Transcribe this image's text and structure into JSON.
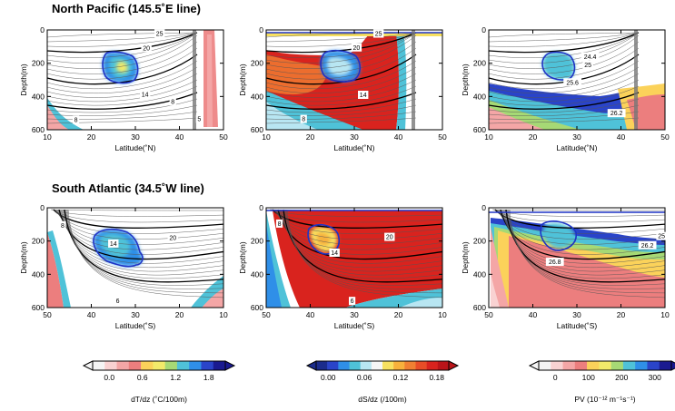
{
  "chart_data": {
    "type": "heatmap",
    "sections": [
      {
        "title": "North Pacific (145.5˚E line)",
        "region": "north-pacific"
      },
      {
        "title": "South Atlantic (34.5˚W line)",
        "region": "south-atlantic"
      }
    ],
    "depth_axis": {
      "label": "Depth(m)",
      "range": [
        0,
        600
      ],
      "ticks": [
        "0",
        "200",
        "400",
        "600"
      ]
    },
    "lat_axis_north": {
      "label": "Latitude(˚N)",
      "range": [
        10,
        50
      ],
      "ticks": [
        "10",
        "20",
        "30",
        "40",
        "50"
      ]
    },
    "lat_axis_south": {
      "label": "Latitude(˚S)",
      "range": [
        50,
        10
      ],
      "ticks": [
        "50",
        "40",
        "30",
        "20",
        "10"
      ]
    },
    "panels": [
      {
        "id": "np-dtdz",
        "region": "north",
        "variable": "dT/dz",
        "contour_labels": [
          {
            "text": "25",
            "lat": 35.5,
            "depth": 22
          },
          {
            "text": "20",
            "lat": 32.5,
            "depth": 108
          },
          {
            "text": "14",
            "lat": 32.2,
            "depth": 388
          },
          {
            "text": "8",
            "lat": 38.5,
            "depth": 430
          },
          {
            "text": "8",
            "lat": 16.5,
            "depth": 540
          },
          {
            "text": "5",
            "lat": 44.5,
            "depth": 535
          }
        ]
      },
      {
        "id": "np-dsdz",
        "region": "north",
        "variable": "dS/dz",
        "contour_labels": [
          {
            "text": "25",
            "lat": 35.5,
            "depth": 22
          },
          {
            "text": "20",
            "lat": 30.5,
            "depth": 105
          },
          {
            "text": "14",
            "lat": 32.0,
            "depth": 390
          },
          {
            "text": "8",
            "lat": 18.5,
            "depth": 535
          }
        ]
      },
      {
        "id": "np-pv",
        "region": "north",
        "variable": "PV",
        "contour_labels": [
          {
            "text": "24.4",
            "lat": 33.0,
            "depth": 160
          },
          {
            "text": "25",
            "lat": 32.5,
            "depth": 210
          },
          {
            "text": "25.6",
            "lat": 29.0,
            "depth": 315
          },
          {
            "text": "26.2",
            "lat": 39.0,
            "depth": 500
          }
        ]
      },
      {
        "id": "sa-dtdz",
        "region": "south",
        "variable": "dT/dz",
        "contour_labels": [
          {
            "text": "8",
            "lat": 46.5,
            "depth": 105
          },
          {
            "text": "14",
            "lat": 35.0,
            "depth": 215
          },
          {
            "text": "20",
            "lat": 21.5,
            "depth": 180
          },
          {
            "text": "6",
            "lat": 34.0,
            "depth": 560
          }
        ]
      },
      {
        "id": "sa-dsdz",
        "region": "south",
        "variable": "dS/dz",
        "contour_labels": [
          {
            "text": "8",
            "lat": 47.0,
            "depth": 95
          },
          {
            "text": "20",
            "lat": 22.0,
            "depth": 175
          },
          {
            "text": "14",
            "lat": 34.5,
            "depth": 270
          },
          {
            "text": "6",
            "lat": 30.5,
            "depth": 560
          }
        ]
      },
      {
        "id": "sa-pv",
        "region": "south",
        "variable": "PV",
        "contour_labels": [
          {
            "text": "25",
            "lat": 10.8,
            "depth": 170
          },
          {
            "text": "26.2",
            "lat": 14.0,
            "depth": 225
          },
          {
            "text": "26.8",
            "lat": 35.0,
            "depth": 325
          }
        ]
      }
    ],
    "colorbars": [
      {
        "id": "cb-dtdz",
        "label": "dT/dz (˚C/100m)",
        "ticks": [
          "0.0",
          "0.6",
          "1.2",
          "1.8"
        ],
        "tick_values": [
          0.0,
          0.6,
          1.2,
          1.8
        ],
        "range": [
          -0.3,
          2.1
        ],
        "colors": [
          "#f5f5f5",
          "#f9d2d2",
          "#f4a6a6",
          "#ec7e7e",
          "#fbd25a",
          "#f2ea6a",
          "#a6d975",
          "#4fc2d8",
          "#2f8fe8",
          "#2a44c9",
          "#1a1a90"
        ]
      },
      {
        "id": "cb-dsdz",
        "label": "dS/dz (/100m)",
        "ticks": [
          "0.00",
          "0.06",
          "0.12",
          "0.18"
        ],
        "tick_values": [
          0.0,
          0.06,
          0.12,
          0.18
        ],
        "range": [
          -0.02,
          0.2
        ],
        "colors": [
          "#1b2c8c",
          "#2a44c9",
          "#2f8fe8",
          "#4fc2d8",
          "#b8e6f2",
          "#f6f6f6",
          "#f7e060",
          "#f7b13c",
          "#f08032",
          "#e84d27",
          "#d9231e",
          "#ba1419"
        ]
      },
      {
        "id": "cb-pv",
        "label": "PV (10⁻¹² m⁻¹s⁻¹)",
        "ticks": [
          "0",
          "100",
          "200",
          "300"
        ],
        "tick_values": [
          0,
          100,
          200,
          300
        ],
        "range": [
          -50,
          350
        ],
        "colors": [
          "#f5f5f5",
          "#f9d2d2",
          "#f4a6a6",
          "#ec7e7e",
          "#fbd25a",
          "#f2ea6a",
          "#a6d975",
          "#4fc2d8",
          "#2f8fe8",
          "#2a44c9",
          "#1a1a90"
        ]
      }
    ]
  }
}
